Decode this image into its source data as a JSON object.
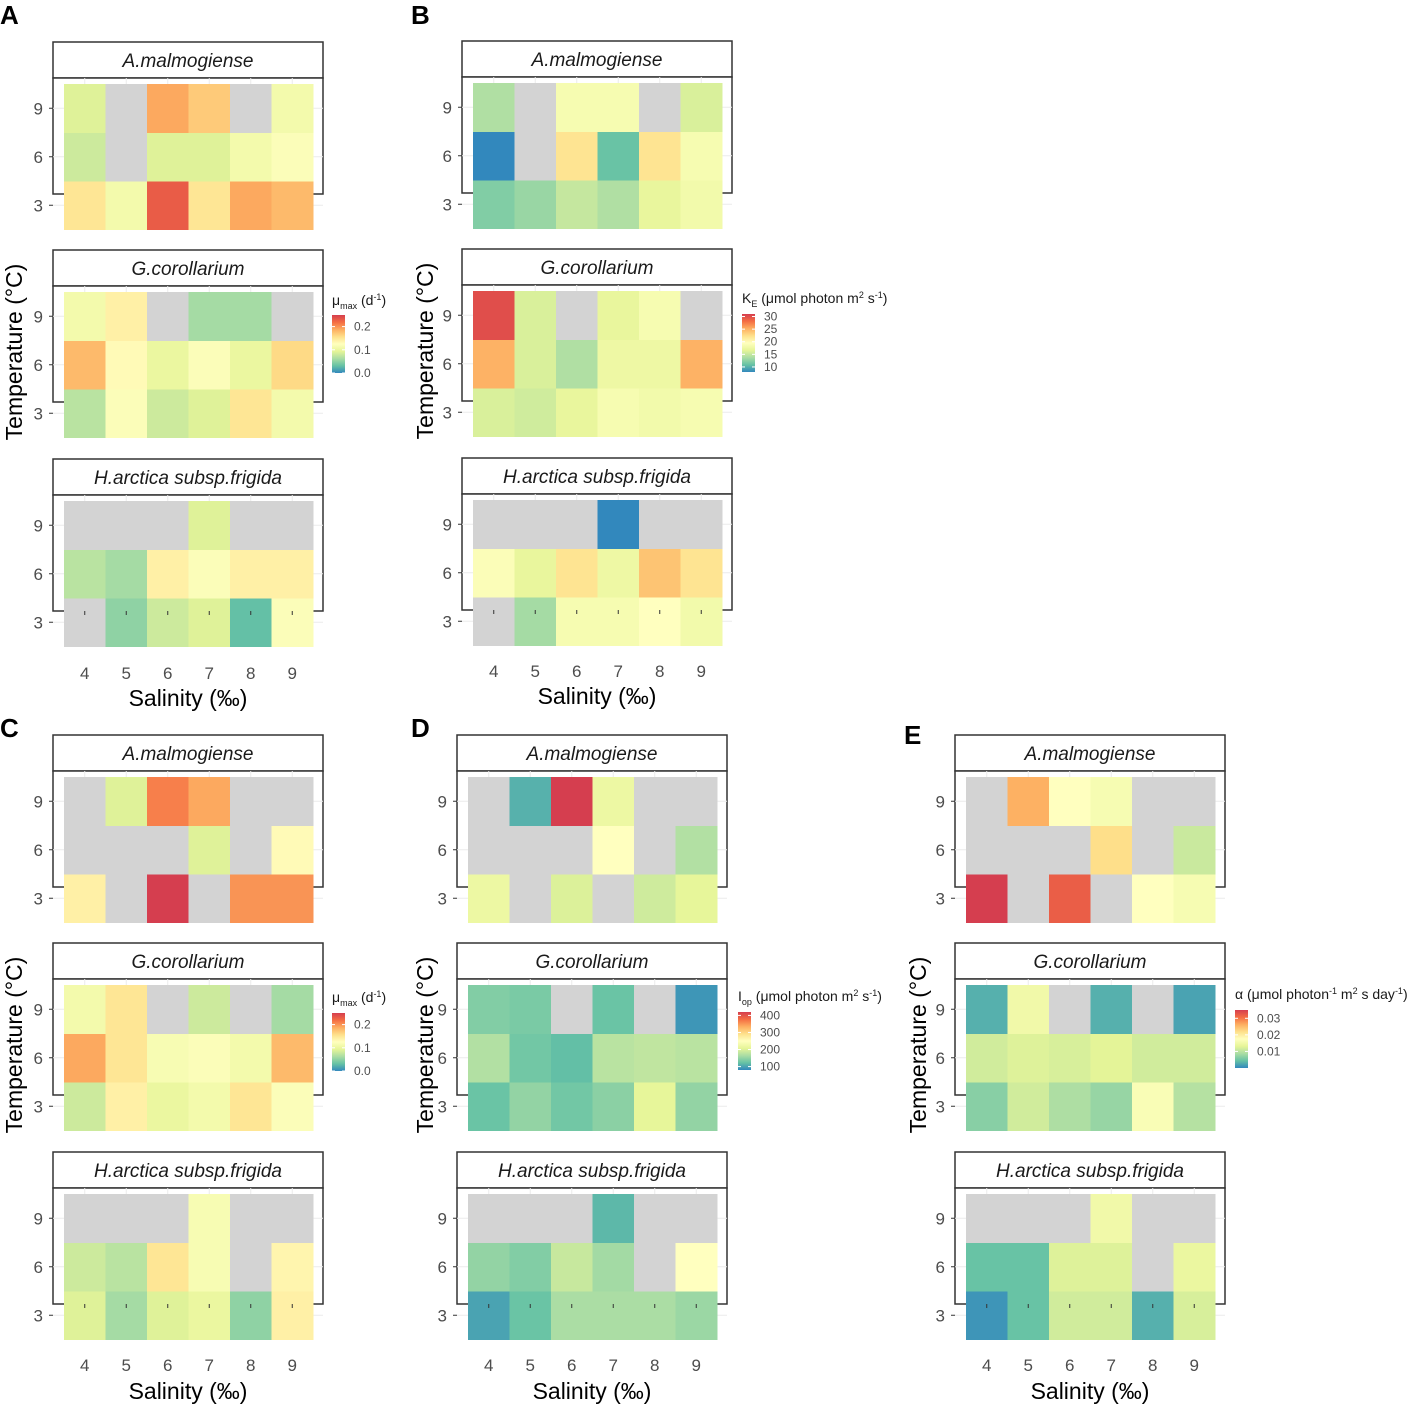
{
  "colors": {
    "missing": "#d3d3d3",
    "scale": [
      "#3288bd",
      "#66c2a5",
      "#abdda4",
      "#e6f598",
      "#ffffbf",
      "#fee08b",
      "#fdae61",
      "#f46d43",
      "#d53e4f"
    ]
  },
  "chart_data": [
    {
      "type": "heatmap",
      "panel": "A",
      "xlabel": "Salinity  (‰)",
      "ylabel": "Temperature (°C)",
      "x": [
        "4",
        "5",
        "6",
        "7",
        "8",
        "9"
      ],
      "y": [
        "3",
        "6",
        "9"
      ],
      "legend": {
        "title": "μ",
        "sub": "max",
        "unit": " (d",
        "sup": "-1",
        "close": ")",
        "range": [
          0,
          0.25
        ],
        "ticks": [
          0.0,
          0.1,
          0.2
        ],
        "tick_labels": [
          "0.0",
          "0.1",
          "0.2"
        ]
      },
      "facets": [
        {
          "title": "A.malmogiense",
          "values": [
            [
              0.15,
              0.11,
              0.23,
              0.15,
              0.19,
              0.18
            ],
            [
              0.08,
              null,
              0.09,
              0.09,
              0.11,
              0.12
            ],
            [
              0.09,
              null,
              0.19,
              0.17,
              null,
              0.11
            ]
          ]
        },
        {
          "title": "G.corollarium",
          "values": [
            [
              0.07,
              0.12,
              0.08,
              0.09,
              0.15,
              0.11
            ],
            [
              0.18,
              0.13,
              0.1,
              0.12,
              0.1,
              0.16
            ],
            [
              0.11,
              0.14,
              null,
              0.06,
              0.06,
              null
            ]
          ]
        },
        {
          "title": "H.arctica subsp.frigida",
          "values": [
            [
              null,
              0.05,
              0.08,
              0.09,
              0.03,
              0.12
            ],
            [
              0.07,
              0.06,
              0.14,
              0.12,
              0.14,
              0.14
            ],
            [
              null,
              null,
              null,
              0.09,
              null,
              null
            ]
          ]
        }
      ]
    },
    {
      "type": "heatmap",
      "panel": "B",
      "xlabel": "Salinity  (‰)",
      "ylabel": "Temperature (°C)",
      "x": [
        "4",
        "5",
        "6",
        "7",
        "8",
        "9"
      ],
      "y": [
        "3",
        "6",
        "9"
      ],
      "legend": {
        "title": "K",
        "sub": "E",
        "unit": " (μmol photon m",
        "sup": "2",
        "unit2": " s",
        "sup2": "-1",
        "close": ")",
        "range": [
          8,
          31
        ],
        "ticks": [
          10,
          15,
          20,
          25,
          30
        ],
        "tick_labels": [
          "10",
          "15",
          "20",
          "25",
          "30"
        ]
      },
      "facets": [
        {
          "title": "A.malmogiense",
          "values": [
            [
              12,
              13,
              15,
              14,
              17,
              18
            ],
            [
              8,
              null,
              22,
              11,
              22,
              18.5
            ],
            [
              14,
              null,
              18.5,
              18.5,
              null,
              16
            ]
          ]
        },
        {
          "title": "G.corollarium",
          "values": [
            [
              16,
              15.5,
              17,
              18.5,
              18,
              18.5
            ],
            [
              25,
              16,
              14,
              17.5,
              17.5,
              25
            ],
            [
              30,
              16,
              null,
              17,
              18.5,
              null
            ]
          ]
        },
        {
          "title": "H.arctica subsp.frigida",
          "values": [
            [
              null,
              13.5,
              18.5,
              18.5,
              19.5,
              18
            ],
            [
              19,
              17,
              22,
              17.5,
              24,
              22
            ],
            [
              null,
              null,
              null,
              8,
              null,
              null
            ]
          ]
        }
      ]
    },
    {
      "type": "heatmap",
      "panel": "C",
      "xlabel": "Salinity  (‰)",
      "ylabel": "Temperature (°C)",
      "x": [
        "4",
        "5",
        "6",
        "7",
        "8",
        "9"
      ],
      "y": [
        "3",
        "6",
        "9"
      ],
      "legend": {
        "title": "μ",
        "sub": "max",
        "unit": " (d",
        "sup": "-1",
        "close": ")",
        "range": [
          0,
          0.25
        ],
        "ticks": [
          0.0,
          0.1,
          0.2
        ],
        "tick_labels": [
          "0.0",
          "0.1",
          "0.2"
        ]
      },
      "facets": [
        {
          "title": "A.malmogiense",
          "values": [
            [
              0.14,
              null,
              0.25,
              null,
              0.2,
              0.2
            ],
            [
              null,
              null,
              null,
              0.09,
              null,
              0.13
            ],
            [
              null,
              0.09,
              0.21,
              0.19,
              null,
              null
            ]
          ]
        },
        {
          "title": "G.corollarium",
          "values": [
            [
              0.08,
              0.14,
              0.1,
              0.11,
              0.15,
              0.12
            ],
            [
              0.19,
              0.15,
              0.115,
              0.12,
              0.11,
              0.18
            ],
            [
              0.11,
              0.15,
              null,
              0.08,
              null,
              0.06
            ]
          ]
        },
        {
          "title": "H.arctica subsp.frigida",
          "values": [
            [
              0.09,
              0.06,
              0.09,
              0.1,
              0.05,
              0.14
            ],
            [
              0.08,
              0.07,
              0.15,
              0.115,
              null,
              0.135
            ],
            [
              null,
              null,
              null,
              0.115,
              null,
              null
            ]
          ]
        }
      ]
    },
    {
      "type": "heatmap",
      "panel": "D",
      "xlabel": "Salinity  (‰)",
      "ylabel": "Temperature (°C)",
      "x": [
        "4",
        "5",
        "6",
        "7",
        "8",
        "9"
      ],
      "y": [
        "3",
        "6",
        "9"
      ],
      "legend": {
        "title": "I",
        "sub": "op",
        "unit": " (μmol photon m",
        "sup": "2",
        "unit2": " s",
        "sup2": "-1",
        "close": ")",
        "range": [
          80,
          420
        ],
        "ticks": [
          100,
          200,
          300,
          400
        ],
        "tick_labels": [
          "100",
          "200",
          "300",
          "400"
        ]
      },
      "facets": [
        {
          "title": "A.malmogiense",
          "values": [
            [
              220,
              null,
              200,
              null,
              190,
              210
            ],
            [
              null,
              null,
              null,
              250,
              null,
              170
            ],
            [
              null,
              110,
              420,
              220,
              null,
              null
            ]
          ]
        },
        {
          "title": "G.corollarium",
          "values": [
            [
              125,
              150,
              130,
              145,
              210,
              150
            ],
            [
              170,
              130,
              120,
              175,
              180,
              175
            ],
            [
              140,
              135,
              null,
              125,
              null,
              90
            ]
          ]
        },
        {
          "title": "H.arctica subsp.frigida",
          "values": [
            [
              100,
              125,
              165,
              165,
              165,
              155
            ],
            [
              150,
              140,
              185,
              160,
              null,
              250
            ],
            [
              null,
              null,
              null,
              115,
              null,
              null
            ]
          ]
        }
      ]
    },
    {
      "type": "heatmap",
      "panel": "E",
      "xlabel": "Salinity  (‰)",
      "ylabel": "Temperature (°C)",
      "x": [
        "4",
        "5",
        "6",
        "7",
        "8",
        "9"
      ],
      "y": [
        "3",
        "6",
        "9"
      ],
      "legend": {
        "title": "α",
        "unit": " (μmol photon",
        "sup": "-1",
        "unit2": " m",
        "sup2": "2",
        "unit3": " s day",
        "sup3": "-1",
        "close": ")",
        "range": [
          0.0,
          0.035
        ],
        "ticks": [
          0.01,
          0.02,
          0.03
        ],
        "tick_labels": [
          "0.01",
          "0.02",
          "0.03"
        ]
      },
      "facets": [
        {
          "title": "A.malmogiense",
          "values": [
            [
              0.035,
              null,
              0.032,
              null,
              0.0175,
              0.016
            ],
            [
              null,
              null,
              null,
              0.022,
              null,
              0.011
            ],
            [
              null,
              0.026,
              0.0175,
              0.016,
              null,
              null
            ]
          ]
        },
        {
          "title": "G.corollarium",
          "values": [
            [
              0.0065,
              0.0115,
              0.009,
              0.0075,
              0.0165,
              0.0095
            ],
            [
              0.0115,
              0.0125,
              0.012,
              0.013,
              0.0115,
              0.0115
            ],
            [
              0.003,
              0.015,
              null,
              0.003,
              null,
              0.002
            ]
          ]
        },
        {
          "title": "H.arctica subsp.frigida",
          "values": [
            [
              0.001,
              0.0045,
              0.0115,
              0.0115,
              0.003,
              0.012
            ],
            [
              0.0045,
              0.0045,
              0.0125,
              0.0125,
              null,
              0.014
            ],
            [
              null,
              null,
              null,
              0.015,
              null,
              null
            ]
          ]
        }
      ]
    }
  ]
}
